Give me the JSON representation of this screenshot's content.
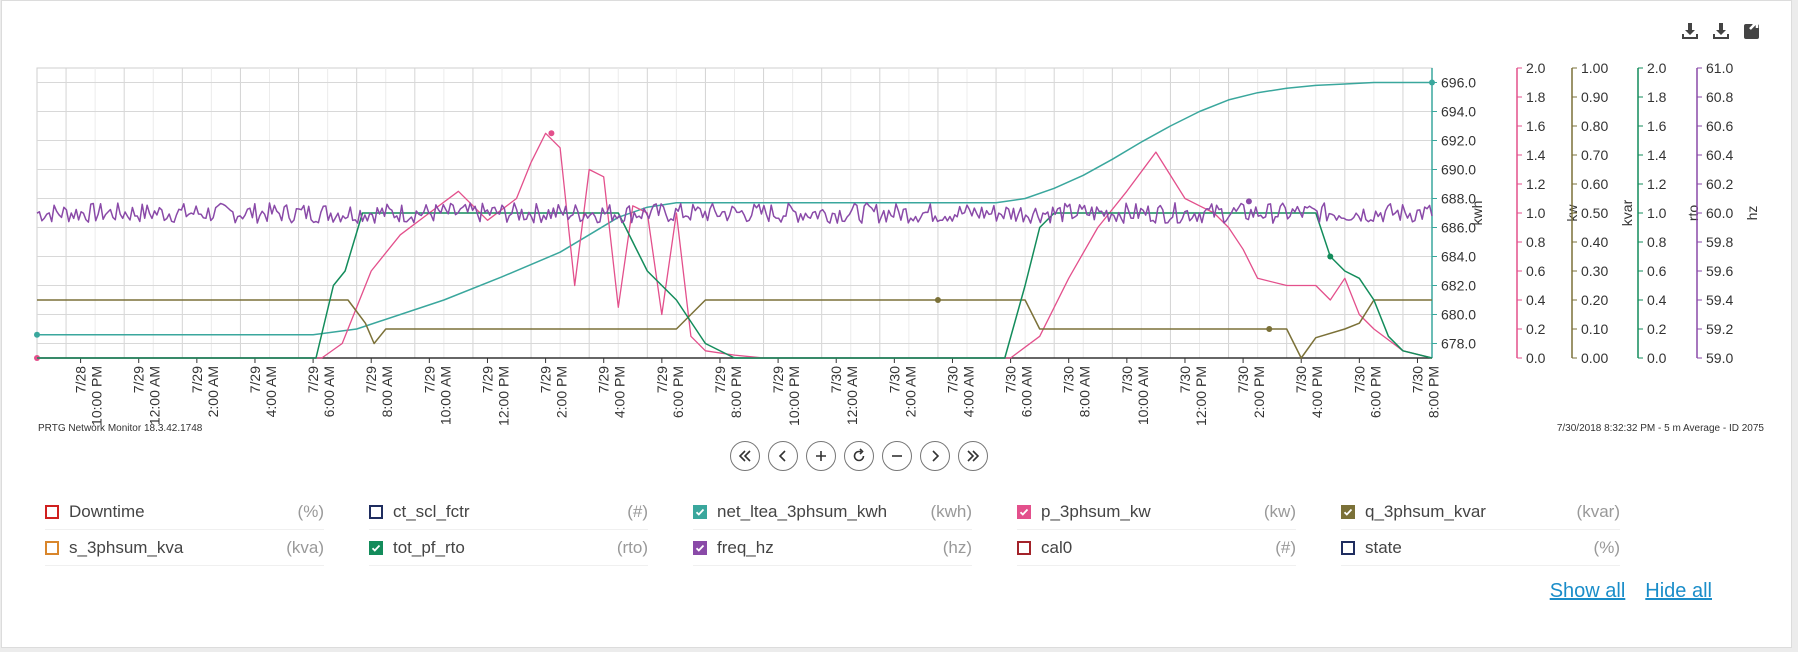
{
  "footer": {
    "left": "PRTG Network Monitor 18.3.42.1748",
    "right": "7/30/2018 8:32:32 PM - 5 m Average - ID 2075"
  },
  "toolbar": {
    "icons": [
      "download-icon",
      "download-icon",
      "expand-icon"
    ]
  },
  "navigation": [
    "first-icon",
    "previous-icon",
    "zoom-in-icon",
    "reset-icon",
    "zoom-out-icon",
    "next-icon",
    "last-icon"
  ],
  "legend": [
    {
      "name": "Downtime",
      "unit": "(%)",
      "checked": false,
      "color": "#d0201f"
    },
    {
      "name": "ct_scl_fctr",
      "unit": "(#)",
      "checked": false,
      "color": "#1f2d5f"
    },
    {
      "name": "net_ltea_3phsum_kwh",
      "unit": "(kwh)",
      "checked": true,
      "color": "#3aa79d"
    },
    {
      "name": "p_3phsum_kw",
      "unit": "(kw)",
      "checked": true,
      "color": "#e3508c"
    },
    {
      "name": "q_3phsum_kvar",
      "unit": "(kvar)",
      "checked": true,
      "color": "#7b7138"
    },
    {
      "name": "s_3phsum_kva",
      "unit": "(kva)",
      "checked": false,
      "color": "#d9862b"
    },
    {
      "name": "tot_pf_rto",
      "unit": "(rto)",
      "checked": true,
      "color": "#138c5b"
    },
    {
      "name": "freq_hz",
      "unit": "(hz)",
      "checked": true,
      "color": "#8a4aa8"
    },
    {
      "name": "cal0",
      "unit": "(#)",
      "checked": false,
      "color": "#a3232a"
    },
    {
      "name": "state",
      "unit": "(%)",
      "checked": false,
      "color": "#1f2d5f"
    }
  ],
  "links": {
    "show_all": "Show all",
    "hide_all": "Hide all"
  },
  "chart_data": {
    "type": "line",
    "x_range": [
      "7/28/2018 8:30 PM",
      "7/30/2018 8:30 PM"
    ],
    "x_tick_labels": [
      "7/28 10:00 PM",
      "7/29 12:00 AM",
      "7/29 2:00 AM",
      "7/29 4:00 AM",
      "7/29 6:00 AM",
      "7/29 8:00 AM",
      "7/29 10:00 AM",
      "7/29 12:00 PM",
      "7/29 2:00 PM",
      "7/29 4:00 PM",
      "7/29 6:00 PM",
      "7/29 8:00 PM",
      "7/29 10:00 PM",
      "7/30 12:00 AM",
      "7/30 2:00 AM",
      "7/30 4:00 AM",
      "7/30 6:00 AM",
      "7/30 8:00 AM",
      "7/30 10:00 AM",
      "7/30 12:00 PM",
      "7/30 2:00 PM",
      "7/30 4:00 PM",
      "7/30 6:00 PM",
      "7/30 8:00 PM"
    ],
    "axes": [
      {
        "label": "kwh",
        "ticks": [
          "678.0",
          "680.0",
          "682.0",
          "684.0",
          "686.0",
          "688.0",
          "690.0",
          "692.0",
          "694.0",
          "696.0"
        ],
        "ylim": [
          677.0,
          697.0
        ],
        "color": "#3aa79d"
      },
      {
        "label": "kw",
        "ticks": [
          "0.0",
          "0.2",
          "0.4",
          "0.6",
          "0.8",
          "1.0",
          "1.2",
          "1.4",
          "1.6",
          "1.8",
          "2.0"
        ],
        "ylim": [
          0.0,
          2.0
        ],
        "color": "#e3508c"
      },
      {
        "label": "kvar",
        "ticks": [
          "0.00",
          "0.10",
          "0.20",
          "0.30",
          "0.40",
          "0.50",
          "0.60",
          "0.70",
          "0.80",
          "0.90",
          "1.00"
        ],
        "ylim": [
          0.0,
          1.0
        ],
        "color": "#7b7138"
      },
      {
        "label": "rto",
        "ticks": [
          "0.0",
          "0.2",
          "0.4",
          "0.6",
          "0.8",
          "1.0",
          "1.2",
          "1.4",
          "1.6",
          "1.8",
          "2.0"
        ],
        "ylim": [
          0.0,
          2.0
        ],
        "color": "#138c5b"
      },
      {
        "label": "hz",
        "ticks": [
          "59.0",
          "59.2",
          "59.4",
          "59.6",
          "59.8",
          "60.0",
          "60.2",
          "60.4",
          "60.6",
          "60.8",
          "61.0"
        ],
        "ylim": [
          59.0,
          61.0
        ],
        "color": "#8a4aa8"
      }
    ],
    "series": [
      {
        "name": "net_ltea_3phsum_kwh",
        "axis": 0,
        "color": "#3aa79d",
        "x": [
          0,
          9.5,
          11,
          14,
          16,
          18,
          19,
          20,
          21,
          22,
          30,
          33,
          34,
          35,
          36,
          37,
          38,
          39,
          40,
          41,
          42,
          43,
          44,
          45,
          46,
          47,
          48
        ],
        "y": [
          678.6,
          678.6,
          679.0,
          681.0,
          682.6,
          684.3,
          685.5,
          686.7,
          687.4,
          687.7,
          687.7,
          687.7,
          688.0,
          688.7,
          689.6,
          690.7,
          691.9,
          693.0,
          694.0,
          694.8,
          695.3,
          695.6,
          695.8,
          695.9,
          696.0,
          696.0,
          696.0
        ],
        "marker_x": [
          0,
          48
        ]
      },
      {
        "name": "p_3phsum_kw",
        "axis": 1,
        "color": "#e3508c",
        "x": [
          0,
          9.8,
          10.5,
          11.5,
          12.5,
          13.5,
          14.5,
          15.5,
          16.5,
          17,
          17.5,
          18,
          18.5,
          19,
          19.5,
          20,
          20.5,
          21,
          21.5,
          22,
          22.5,
          23,
          24,
          25,
          33.5,
          34.5,
          35.5,
          36.5,
          37.5,
          38.5,
          39.5,
          40,
          40.5,
          41,
          41.5,
          42,
          43,
          44,
          44.5,
          45,
          45.5,
          46,
          47,
          48
        ],
        "y": [
          0.0,
          0.0,
          0.1,
          0.6,
          0.85,
          1.0,
          1.15,
          0.95,
          1.1,
          1.35,
          1.55,
          1.45,
          0.5,
          1.3,
          1.25,
          0.35,
          1.05,
          1.0,
          0.3,
          1.0,
          0.15,
          0.05,
          0.02,
          0.0,
          0.0,
          0.15,
          0.55,
          0.9,
          1.15,
          1.42,
          1.1,
          1.05,
          1.0,
          0.9,
          0.75,
          0.55,
          0.5,
          0.5,
          0.4,
          0.55,
          0.3,
          0.2,
          0.05,
          0.0
        ],
        "marker_x": [
          0,
          17.7
        ]
      },
      {
        "name": "q_3phsum_kvar",
        "axis": 2,
        "color": "#7b7138",
        "x": [
          0,
          10.7,
          11.3,
          11.6,
          12,
          17,
          18,
          19,
          20,
          21,
          22,
          23,
          24,
          31,
          34,
          34.5,
          35,
          38,
          40,
          42,
          43,
          43.5,
          44,
          45,
          45.5,
          46,
          47,
          48
        ],
        "y": [
          0.2,
          0.2,
          0.12,
          0.05,
          0.1,
          0.1,
          0.1,
          0.1,
          0.1,
          0.1,
          0.1,
          0.2,
          0.2,
          0.2,
          0.2,
          0.1,
          0.1,
          0.1,
          0.1,
          0.1,
          0.1,
          0.0,
          0.07,
          0.1,
          0.12,
          0.2,
          0.2,
          0.2
        ],
        "marker_x": [
          31,
          42.4
        ]
      },
      {
        "name": "tot_pf_rto",
        "axis": 3,
        "color": "#138c5b",
        "x": [
          0,
          9.6,
          10.2,
          10.6,
          11.2,
          12,
          16,
          20,
          20.5,
          21,
          22,
          23,
          24,
          33.3,
          34,
          34.5,
          35,
          35.5,
          40,
          44,
          44.5,
          45,
          45.5,
          46,
          46.5,
          47,
          48
        ],
        "y": [
          0.0,
          0.0,
          0.5,
          0.6,
          1.0,
          1.0,
          1.0,
          1.0,
          0.8,
          0.6,
          0.4,
          0.1,
          0.0,
          0.0,
          0.5,
          0.9,
          1.0,
          1.0,
          1.0,
          1.0,
          0.7,
          0.6,
          0.55,
          0.4,
          0.15,
          0.05,
          0.0
        ],
        "marker_x": [
          44.5
        ]
      },
      {
        "name": "freq_hz",
        "axis": 4,
        "color": "#8a4aa8",
        "x": [
          0,
          48
        ],
        "y": [
          60.0,
          60.0
        ],
        "marker_x": [
          41.7
        ]
      }
    ]
  }
}
